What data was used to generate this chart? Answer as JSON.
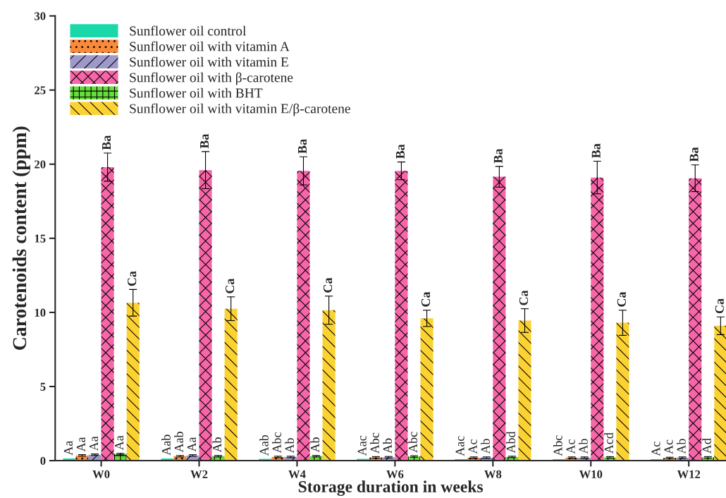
{
  "chart_data": {
    "type": "bar",
    "xlabel": "Storage duration in weeks",
    "ylabel": "Carotenoids content (ppm)",
    "categories": [
      "W0",
      "W2",
      "W4",
      "W6",
      "W8",
      "W10",
      "W12"
    ],
    "ylim": [
      0,
      30
    ],
    "yticks": [
      0,
      5,
      10,
      15,
      20,
      25,
      30
    ],
    "grid": false,
    "legend": "top left",
    "series": [
      {
        "name": "Sunflower oil control",
        "color": "#1ad8a8",
        "values": [
          0.15,
          0.15,
          0.12,
          0.12,
          0.1,
          0.1,
          0.1
        ],
        "errors": [
          null,
          null,
          null,
          null,
          null,
          null,
          null
        ],
        "value_labels": [
          "Aa",
          "Aab",
          "Aab",
          "Aac",
          "Aac",
          "Abc",
          "Ac"
        ]
      },
      {
        "name": "Sunflower oil with vitamin A",
        "color": "#f98a3a",
        "values": [
          0.35,
          0.3,
          0.25,
          0.22,
          0.2,
          0.2,
          0.18
        ],
        "errors": [
          0.05,
          0.05,
          0.05,
          0.05,
          0.05,
          0.05,
          0.05
        ],
        "value_labels": [
          "Aa",
          "Aab",
          "Abc",
          "Abc",
          "Ac",
          "Ac",
          "Ac"
        ]
      },
      {
        "name": "Sunflower oil with vitamin E",
        "color": "#9e99c9",
        "values": [
          0.4,
          0.35,
          0.25,
          0.23,
          0.2,
          0.2,
          0.2
        ],
        "errors": [
          0.05,
          0.05,
          0.05,
          0.05,
          0.05,
          0.05,
          0.05
        ],
        "value_labels": [
          "Aa",
          "Aa",
          "Ab",
          "Ab",
          "Ab",
          "Ab",
          "Ab"
        ]
      },
      {
        "name": "Sunflower oil with β-carotene",
        "color": "#f766a8",
        "values": [
          19.8,
          19.6,
          19.55,
          19.55,
          19.15,
          19.1,
          19.05
        ],
        "errors": [
          0.95,
          1.25,
          0.95,
          0.6,
          0.7,
          1.1,
          0.9
        ],
        "value_labels": [
          "Ba",
          "Ba",
          "Ba",
          "Ba",
          "Ba",
          "Ba",
          "Ba"
        ]
      },
      {
        "name": "Sunflower oil with BHT",
        "color": "#66dd3a",
        "values": [
          0.45,
          0.3,
          0.3,
          0.28,
          0.25,
          0.22,
          0.22
        ],
        "errors": [
          0.05,
          0.05,
          0.05,
          0.05,
          0.05,
          0.05,
          0.05
        ],
        "value_labels": [
          "Aa",
          "Ab",
          "Ab",
          "Abc",
          "Abd",
          "Acd",
          "Ad"
        ]
      },
      {
        "name": "Sunflower oil with vitamin E/β-carotene",
        "color": "#fcd232",
        "values": [
          10.65,
          10.25,
          10.15,
          9.6,
          9.45,
          9.3,
          9.1
        ],
        "errors": [
          0.9,
          0.8,
          0.95,
          0.55,
          0.8,
          0.85,
          0.6
        ],
        "value_labels": [
          "Ca",
          "Ca",
          "Ca",
          "Ca",
          "Ca",
          "Ca",
          "Ca"
        ]
      }
    ]
  }
}
